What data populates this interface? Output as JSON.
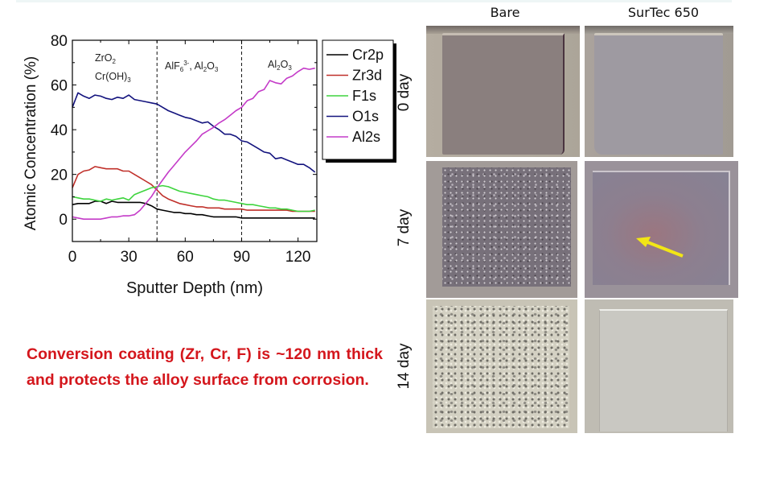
{
  "chart_data": {
    "type": "line",
    "title": "",
    "xlabel": "Sputter Depth (nm)",
    "ylabel": "Atomic Concentration (%)",
    "xlim": [
      0,
      130
    ],
    "ylim": [
      -10,
      80
    ],
    "xticks": [
      0,
      30,
      60,
      90,
      120
    ],
    "yticks": [
      0,
      20,
      40,
      60,
      80
    ],
    "grid": false,
    "legend_position": "outside-right-top",
    "annotations": [
      {
        "text": "ZrO2",
        "x": 8,
        "y": 72
      },
      {
        "text": "Cr(OH)3",
        "x": 8,
        "y": 66
      },
      {
        "text": "AlF6 3-, Al2O3",
        "x": 50,
        "y": 70
      },
      {
        "text": "Al2O3",
        "x": 105,
        "y": 70
      }
    ],
    "vlines": [
      45,
      90
    ],
    "x": [
      0,
      3,
      6,
      9,
      12,
      15,
      18,
      21,
      24,
      27,
      30,
      33,
      36,
      39,
      42,
      45,
      48,
      51,
      54,
      57,
      60,
      63,
      66,
      69,
      72,
      75,
      78,
      81,
      84,
      87,
      90,
      93,
      96,
      99,
      102,
      105,
      108,
      111,
      114,
      117,
      120,
      123,
      126,
      129
    ],
    "series": [
      {
        "name": "Cr2p",
        "color": "#000000",
        "values": [
          6.5,
          7,
          7,
          7,
          8,
          8,
          7,
          8,
          7.5,
          7.5,
          7.5,
          7.5,
          7.5,
          7,
          6,
          4.5,
          4,
          3.5,
          3,
          3,
          2.5,
          2.5,
          2,
          2,
          1.5,
          1,
          1,
          1,
          1,
          1,
          0.5,
          0.5,
          0.5,
          0.5,
          0.5,
          0.5,
          0.5,
          0.5,
          0.5,
          0.5,
          0.5,
          0.5,
          0.5,
          0.5
        ]
      },
      {
        "name": "Zr3d",
        "color": "#c0302a",
        "values": [
          14,
          20,
          21.5,
          22,
          23.5,
          23,
          22.5,
          22.5,
          22.5,
          21.5,
          21.5,
          20,
          18.5,
          17,
          15.5,
          13,
          10.5,
          9,
          8,
          7,
          6.5,
          6,
          5.5,
          5.5,
          5,
          5,
          5,
          4.5,
          4.5,
          4.5,
          4.5,
          4,
          4,
          4,
          4,
          4,
          4,
          4,
          4,
          3.5,
          3.5,
          3.5,
          3.5,
          3.5
        ]
      },
      {
        "name": "F1s",
        "color": "#3ed43e",
        "values": [
          10,
          9.5,
          9,
          9,
          8.5,
          8,
          9,
          8.5,
          9,
          9.5,
          8.5,
          11,
          12,
          13,
          14,
          14.5,
          15,
          14.5,
          13.5,
          12.5,
          12,
          11.5,
          11,
          10.5,
          10,
          9,
          8.5,
          8.5,
          8,
          7.5,
          7,
          6.5,
          6.5,
          6,
          5.5,
          5,
          5,
          4.5,
          4.5,
          4,
          3.5,
          3.5,
          3.5,
          4
        ]
      },
      {
        "name": "O1s",
        "color": "#13137e",
        "values": [
          50,
          56.5,
          55,
          54,
          55.5,
          55,
          54,
          53.5,
          54.5,
          54,
          55.5,
          53.5,
          53,
          52.5,
          52,
          51.5,
          50,
          48.5,
          47.5,
          46.5,
          45.5,
          45,
          44,
          43,
          43.5,
          41.5,
          40,
          38,
          38,
          37,
          35,
          34.5,
          33,
          31.5,
          30,
          29.5,
          27,
          27.5,
          26.5,
          25.5,
          24.5,
          24.5,
          23,
          21
        ]
      },
      {
        "name": "Al2s",
        "color": "#c43bc8",
        "values": [
          1,
          0.5,
          0,
          0,
          0,
          0,
          0.5,
          1,
          1,
          1.5,
          1.5,
          2,
          4,
          7,
          10,
          14,
          17.5,
          21,
          24,
          27,
          30,
          32.5,
          35,
          38,
          39.5,
          41,
          43,
          44.5,
          46.5,
          48.5,
          50,
          53,
          54,
          57,
          58,
          62,
          61,
          60.5,
          63,
          64,
          66,
          67.5,
          67,
          67.5
        ]
      }
    ]
  },
  "chart": {
    "ylabel": "Atomic Concentration (%)",
    "xlabel": "Sputter Depth (nm)",
    "yticks": [
      "80",
      "60",
      "40",
      "20",
      "0"
    ],
    "xticks": [
      "0",
      "30",
      "60",
      "90",
      "120"
    ],
    "annotations": {
      "zr": "ZrO",
      "zr_sub": "2",
      "cr": "Cr(OH)",
      "cr_sub": "3",
      "mid_a": "AlF",
      "mid_a_sub": "6",
      "mid_a_sup": "3-",
      "mid_b": ", Al",
      "mid_b_sub1": "2",
      "mid_b_o": "O",
      "mid_b_sub2": "3",
      "right_a": "Al",
      "right_sub1": "2",
      "right_o": "O",
      "right_sub2": "3"
    },
    "legend": [
      "Cr2p",
      "Zr3d",
      "F1s",
      "O1s",
      "Al2s"
    ]
  },
  "caption": "Conversion coating (Zr, Cr, F) is ~120 nm thick and protects the alloy surface from corrosion.",
  "photos": {
    "columns": [
      "Bare",
      "SurTec 650"
    ],
    "rows": [
      "0 day",
      "7 day",
      "14 day"
    ],
    "arrow_color": "#f2e615"
  }
}
